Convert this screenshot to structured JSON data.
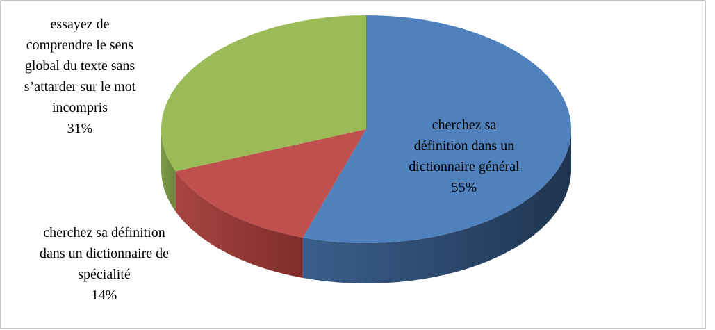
{
  "chart_data": {
    "type": "pie",
    "categories": [
      "cherchez sa définition dans un dictionnaire général",
      "cherchez sa définition dans un dictionnaire de spécialité",
      "essayez de comprendre le sens global du texte sans s’attarder sur le mot incompris"
    ],
    "values": [
      55,
      14,
      31
    ],
    "value_labels": [
      "55%",
      "14%",
      "31%"
    ],
    "colors": [
      "#4f81bd",
      "#c0504d",
      "#9bbb59"
    ]
  }
}
